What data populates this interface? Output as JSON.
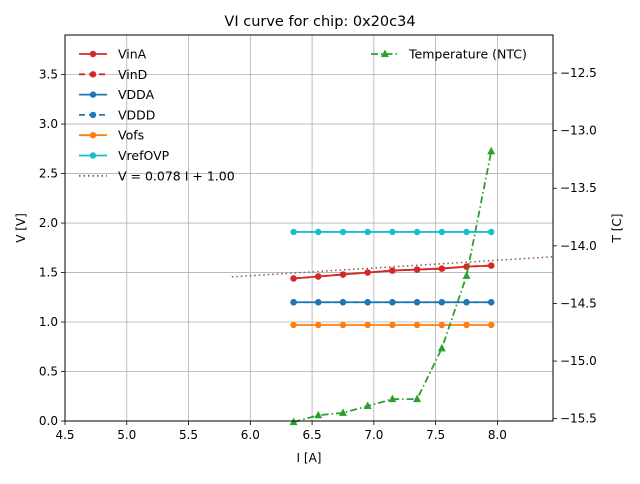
{
  "chart_data": {
    "type": "line",
    "title": "VI curve for chip: 0x20c34",
    "xlabel": "I [A]",
    "ylabel": "V [V]",
    "y2label": "T [C]",
    "xlim": [
      4.5,
      8.45
    ],
    "ylim": [
      0.0,
      3.9
    ],
    "y2lim": [
      -15.52,
      -12.17
    ],
    "grid": true,
    "xticks": [
      "4.5",
      "5.0",
      "5.5",
      "6.0",
      "6.5",
      "7.0",
      "7.5",
      "8.0"
    ],
    "xtick_values": [
      4.5,
      5.0,
      5.5,
      6.0,
      6.5,
      7.0,
      7.5,
      8.0
    ],
    "yticks": [
      "0.0",
      "0.5",
      "1.0",
      "1.5",
      "2.0",
      "2.5",
      "3.0",
      "3.5"
    ],
    "ytick_values": [
      0.0,
      0.5,
      1.0,
      1.5,
      2.0,
      2.5,
      3.0,
      3.5
    ],
    "y2ticks": [
      "−12.5",
      "−13.0",
      "−13.5",
      "−14.0",
      "−14.5",
      "−15.0",
      "−15.5"
    ],
    "y2tick_values": [
      -12.5,
      -13.0,
      -13.5,
      -14.0,
      -14.5,
      -15.0,
      -15.5
    ],
    "x": [
      6.35,
      6.55,
      6.75,
      6.95,
      7.15,
      7.35,
      7.55,
      7.75,
      7.95
    ],
    "series": [
      {
        "name": "VinA",
        "axis": "left",
        "color": "#d62728",
        "dash": "solid",
        "marker": "circle",
        "values": [
          1.44,
          1.46,
          1.48,
          1.5,
          1.52,
          1.53,
          1.54,
          1.56,
          1.57
        ]
      },
      {
        "name": "VinD",
        "axis": "left",
        "color": "#d62728",
        "dash": "dashed",
        "marker": "circle",
        "values": [
          1.44,
          1.46,
          1.48,
          1.5,
          1.52,
          1.53,
          1.54,
          1.56,
          1.57
        ]
      },
      {
        "name": "VDDA",
        "axis": "left",
        "color": "#1f77b4",
        "dash": "solid",
        "marker": "circle",
        "values": [
          1.2,
          1.2,
          1.2,
          1.2,
          1.2,
          1.2,
          1.2,
          1.2,
          1.2
        ]
      },
      {
        "name": "VDDD",
        "axis": "left",
        "color": "#1f77b4",
        "dash": "dashed",
        "marker": "circle",
        "values": [
          1.2,
          1.2,
          1.2,
          1.2,
          1.2,
          1.2,
          1.2,
          1.2,
          1.2
        ]
      },
      {
        "name": "Vofs",
        "axis": "left",
        "color": "#ff7f0e",
        "dash": "solid",
        "marker": "circle",
        "values": [
          0.97,
          0.97,
          0.97,
          0.97,
          0.97,
          0.97,
          0.97,
          0.97,
          0.97
        ]
      },
      {
        "name": "VrefOVP",
        "axis": "left",
        "color": "#17becf",
        "dash": "solid",
        "marker": "circle",
        "values": [
          1.91,
          1.91,
          1.91,
          1.91,
          1.91,
          1.91,
          1.91,
          1.91,
          1.91
        ]
      },
      {
        "name": "Temperature (NTC)",
        "axis": "right",
        "color": "#2ca02c",
        "dash": "dashdot",
        "marker": "triangle",
        "values": [
          -15.53,
          -15.47,
          -15.45,
          -15.39,
          -15.33,
          -15.33,
          -14.89,
          -14.26,
          -13.18
        ]
      }
    ],
    "fit": {
      "name": "V = 0.078 I + 1.00",
      "color": "#8c564b",
      "dash": "dotted",
      "slope": 0.078,
      "intercept": 1.0,
      "x_range": [
        5.85,
        8.45
      ]
    },
    "legend_left": {
      "placement": "top-left",
      "entries": [
        "VinA",
        "VinD",
        "VDDA",
        "VDDD",
        "Vofs",
        "VrefOVP",
        "V = 0.078 I + 1.00"
      ]
    },
    "legend_right": {
      "placement": "top-right",
      "entries": [
        "Temperature (NTC)"
      ]
    }
  }
}
